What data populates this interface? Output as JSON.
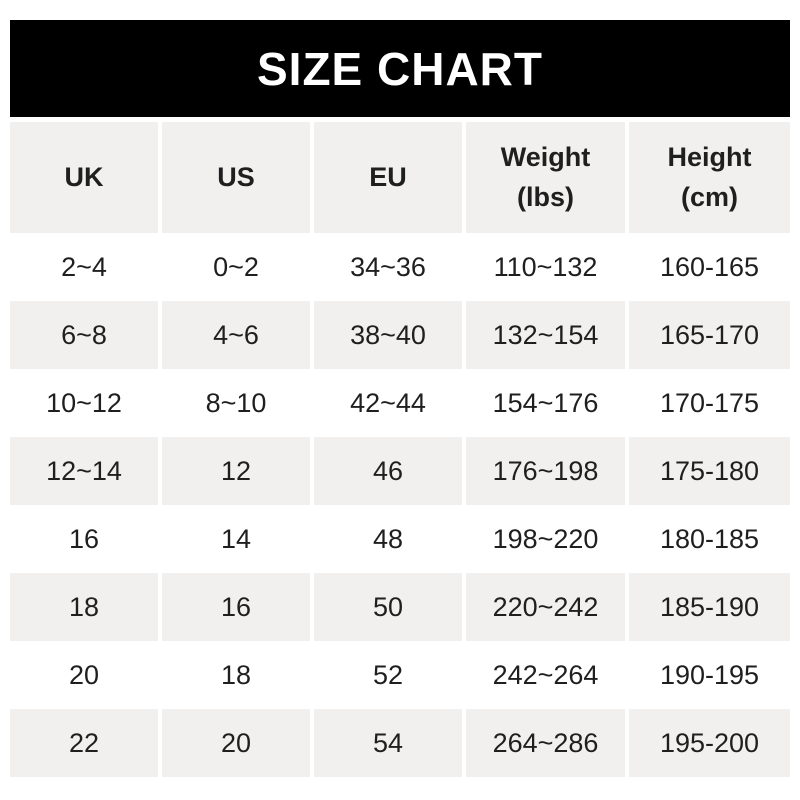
{
  "title": "SIZE CHART",
  "colors": {
    "banner_bg": "#000000",
    "banner_text": "#ffffff",
    "row_shaded": "#f1f0ee",
    "row_plain": "#ffffff",
    "text": "#1f1f1f"
  },
  "table": {
    "headers": [
      {
        "lines": [
          "UK"
        ]
      },
      {
        "lines": [
          "US"
        ]
      },
      {
        "lines": [
          "EU"
        ]
      },
      {
        "lines": [
          "Weight",
          "(lbs)"
        ]
      },
      {
        "lines": [
          "Height",
          "(cm)"
        ]
      }
    ],
    "rows": [
      [
        "2~4",
        "0~2",
        "34~36",
        "110~132",
        "160-165"
      ],
      [
        "6~8",
        "4~6",
        "38~40",
        "132~154",
        "165-170"
      ],
      [
        "10~12",
        "8~10",
        "42~44",
        "154~176",
        "170-175"
      ],
      [
        "12~14",
        "12",
        "46",
        "176~198",
        "175-180"
      ],
      [
        "16",
        "14",
        "48",
        "198~220",
        "180-185"
      ],
      [
        "18",
        "16",
        "50",
        "220~242",
        "185-190"
      ],
      [
        "20",
        "18",
        "52",
        "242~264",
        "190-195"
      ],
      [
        "22",
        "20",
        "54",
        "264~286",
        "195-200"
      ]
    ]
  },
  "chart_data": {
    "type": "table",
    "title": "SIZE CHART",
    "columns": [
      "UK",
      "US",
      "EU",
      "Weight (lbs)",
      "Height (cm)"
    ],
    "rows": [
      [
        "2~4",
        "0~2",
        "34~36",
        "110~132",
        "160-165"
      ],
      [
        "6~8",
        "4~6",
        "38~40",
        "132~154",
        "165-170"
      ],
      [
        "10~12",
        "8~10",
        "42~44",
        "154~176",
        "170-175"
      ],
      [
        "12~14",
        "12",
        "46",
        "176~198",
        "175-180"
      ],
      [
        "16",
        "14",
        "48",
        "198~220",
        "180-185"
      ],
      [
        "18",
        "16",
        "50",
        "220~242",
        "185-190"
      ],
      [
        "20",
        "18",
        "52",
        "242~264",
        "190-195"
      ],
      [
        "22",
        "20",
        "54",
        "264~286",
        "195-200"
      ]
    ],
    "layout": {
      "banner": "black full-width bar at top",
      "row_striping": "header shaded; data rows alternate white/shaded starting with white",
      "column_separators": "thin white gaps between columns"
    }
  }
}
